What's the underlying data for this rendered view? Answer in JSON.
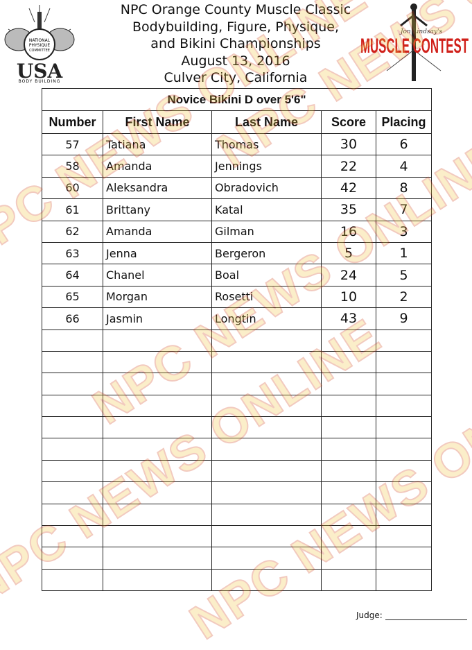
{
  "header": {
    "lines": [
      "NPC Orange County Muscle Classic",
      "Bodybuilding, Figure, Physique,",
      "and Bikini Championships",
      "August 13, 2016",
      "Culver City, California"
    ]
  },
  "logos": {
    "left": {
      "ring_text": "NATIONAL PHYSIQUE COMMITTEE",
      "main": "USA",
      "sub": "BODY BUILDING"
    },
    "right": {
      "script": "Jon Lindsay's",
      "main": "MUSCLE CONTEST"
    }
  },
  "watermark": "NPC NEWS ONLINE",
  "table": {
    "title": "Novice Bikini D over 5'6\"",
    "columns": [
      "Number",
      "First Name",
      "Last Name",
      "Score",
      "Placing"
    ],
    "rows": [
      {
        "number": "57",
        "first": "Tatiana",
        "last": "Thomas",
        "score": "30",
        "placing": "6"
      },
      {
        "number": "58",
        "first": "Amanda",
        "last": "Jennings",
        "score": "22",
        "placing": "4"
      },
      {
        "number": "60",
        "first": "Aleksandra",
        "last": "Obradovich",
        "score": "42",
        "placing": "8"
      },
      {
        "number": "61",
        "first": "Brittany",
        "last": "Katal",
        "score": "35",
        "placing": "7"
      },
      {
        "number": "62",
        "first": "Amanda",
        "last": "Gilman",
        "score": "16",
        "placing": "3"
      },
      {
        "number": "63",
        "first": "Jenna",
        "last": "Bergeron",
        "score": "5",
        "placing": "1"
      },
      {
        "number": "64",
        "first": "Chanel",
        "last": "Boal",
        "score": "24",
        "placing": "5"
      },
      {
        "number": "65",
        "first": "Morgan",
        "last": "Rosetti",
        "score": "10",
        "placing": "2"
      },
      {
        "number": "66",
        "first": "Jasmin",
        "last": "Longtin",
        "score": "43",
        "placing": "9"
      }
    ],
    "empty_rows": 12
  },
  "footer": {
    "judge_label": "Judge:"
  }
}
